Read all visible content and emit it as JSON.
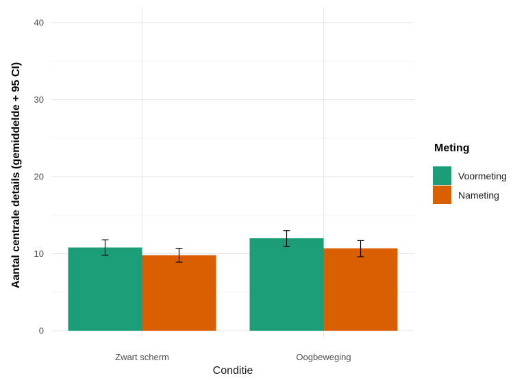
{
  "chart_data": {
    "type": "bar",
    "categories": [
      "Zwart scherm",
      "Oogbeweging"
    ],
    "series": [
      {
        "name": "Voormeting",
        "color": "#1b9e77",
        "values": [
          10.8,
          12.0
        ],
        "ci": [
          [
            9.8,
            11.8
          ],
          [
            10.9,
            13.0
          ]
        ]
      },
      {
        "name": "Nameting",
        "color": "#d95f02",
        "values": [
          9.8,
          10.7
        ],
        "ci": [
          [
            8.9,
            10.7
          ],
          [
            9.6,
            11.7
          ]
        ]
      }
    ],
    "xlabel": "Conditie",
    "ylabel": "Aantal centrale  details (gemiddelde + 95 CI)",
    "ylim": [
      0,
      42
    ],
    "yticks": [
      0,
      10,
      20,
      30,
      40
    ],
    "grid": true,
    "legend": {
      "title": "Meting",
      "position": "right"
    }
  }
}
